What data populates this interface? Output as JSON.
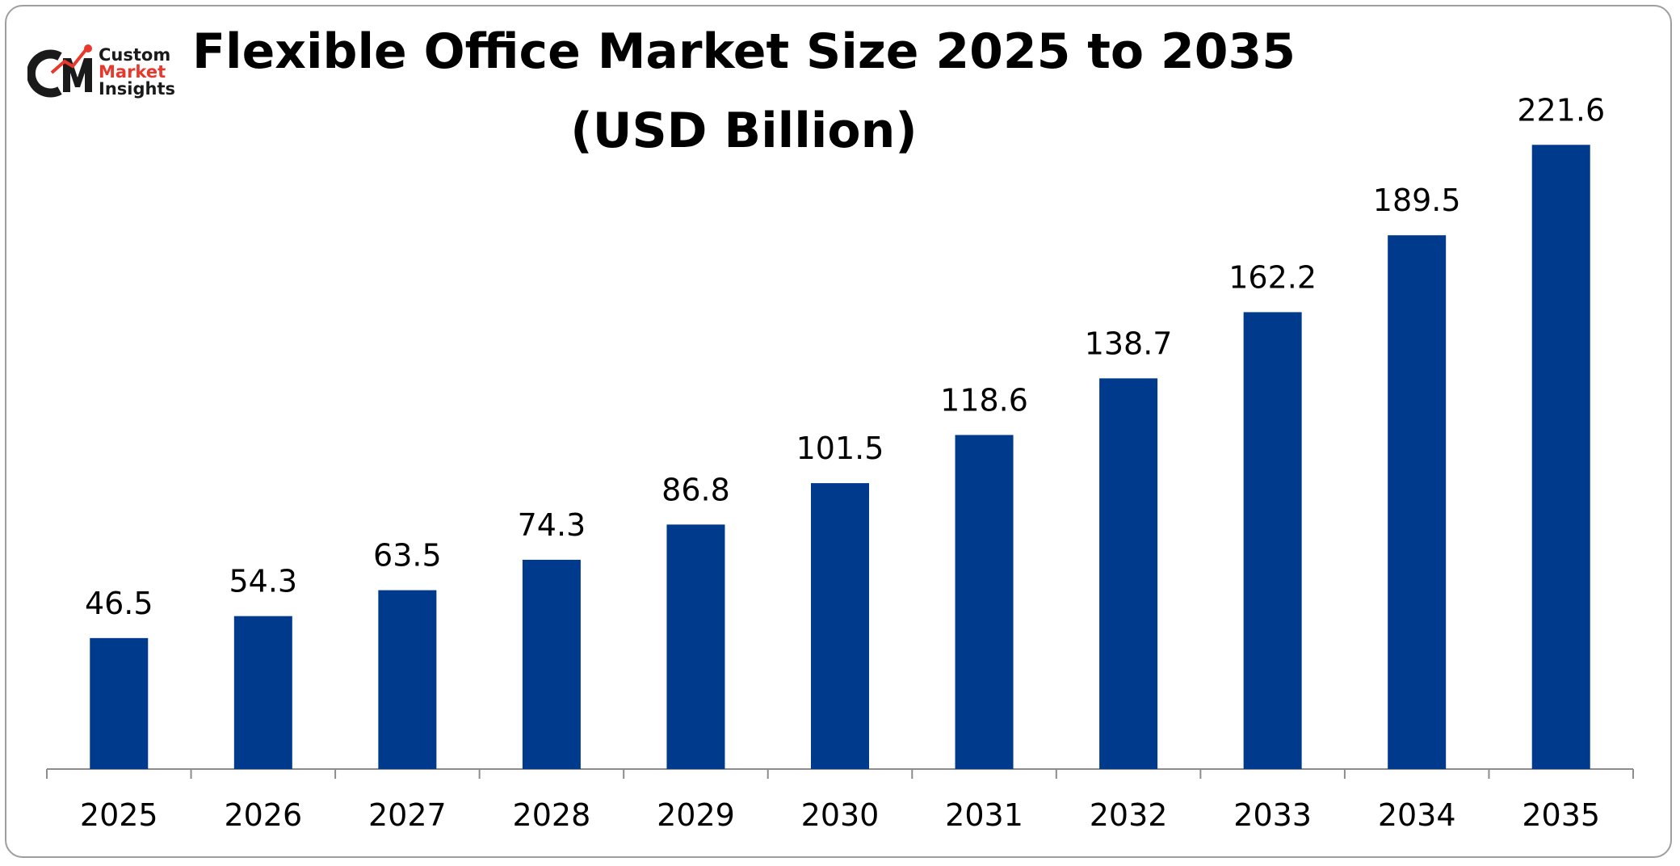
{
  "brand": {
    "logo_letters": "CMI",
    "line1": "Custom",
    "line2": "Market",
    "line3": "Insights",
    "dark_color": "#1a1a1a",
    "accent_color": "#e8382c"
  },
  "chart_data": {
    "type": "bar",
    "title": "Flexible Office Market Size 2025 to 2035",
    "subtitle": "(USD Billion)",
    "categories": [
      "2025",
      "2026",
      "2027",
      "2028",
      "2029",
      "2030",
      "2031",
      "2032",
      "2033",
      "2034",
      "2035"
    ],
    "values": [
      46.5,
      54.3,
      63.5,
      74.3,
      86.8,
      101.5,
      118.6,
      138.7,
      162.2,
      189.5,
      221.6
    ],
    "data_labels": [
      "46.5",
      "54.3",
      "63.5",
      "74.3",
      "86.8",
      "101.5",
      "118.6",
      "138.7",
      "162.2",
      "189.5",
      "221.6"
    ],
    "ylim": [
      0,
      230
    ],
    "grid": false,
    "legend": "none",
    "bar_color": "#003a8c",
    "axis_color": "#8c8c8c"
  }
}
